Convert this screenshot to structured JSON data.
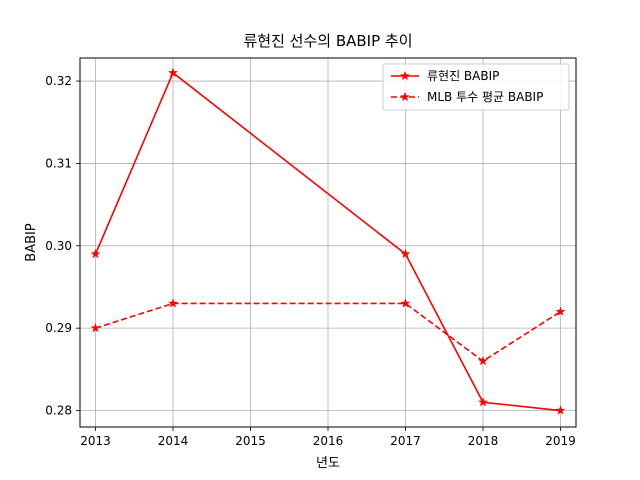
{
  "chart_data": {
    "type": "line",
    "title": "류현진 선수의 BABIP 추이",
    "xlabel": "년도",
    "ylabel": "BABIP",
    "xlim": [
      2012.8,
      2019.2
    ],
    "ylim": [
      0.278,
      0.3228
    ],
    "xticks": [
      2013,
      2014,
      2015,
      2016,
      2017,
      2018,
      2019
    ],
    "xtick_labels": [
      "2013",
      "2014",
      "2015",
      "2016",
      "2017",
      "2018",
      "2019"
    ],
    "yticks": [
      0.28,
      0.29,
      0.3,
      0.31,
      0.32
    ],
    "ytick_labels": [
      "0.28",
      "0.29",
      "0.30",
      "0.31",
      "0.32"
    ],
    "grid": true,
    "legend_position": "top-right",
    "series": [
      {
        "name": "류현진 BABIP",
        "color": "#ff0000",
        "linestyle": "solid",
        "marker": "star",
        "x": [
          2013,
          2014,
          2017,
          2018,
          2019
        ],
        "y": [
          0.299,
          0.321,
          0.299,
          0.281,
          0.28
        ]
      },
      {
        "name": "MLB 투수 평균 BABIP",
        "color": "#ff0000",
        "linestyle": "dashed",
        "marker": "star",
        "x": [
          2013,
          2014,
          2017,
          2018,
          2019
        ],
        "y": [
          0.29,
          0.293,
          0.293,
          0.286,
          0.292
        ]
      }
    ]
  }
}
